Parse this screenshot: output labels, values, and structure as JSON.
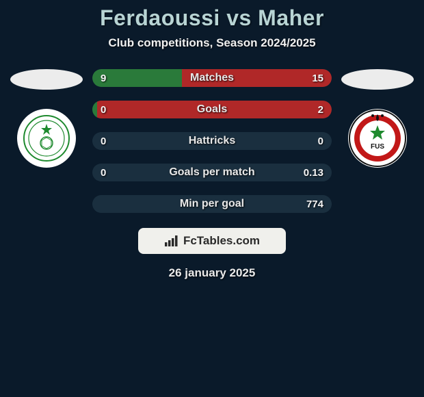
{
  "colors": {
    "background": "#0a1a2a",
    "title_color": "#b8d4d4",
    "subtitle_color": "#f0f0f0",
    "bar_track": "#1a2f3f",
    "left_fill": "#2a7a3a",
    "right_fill": "#b02828",
    "brand_bg": "#f0f0ec",
    "brand_text": "#2a2a2a",
    "left_ellipse": "#ececec",
    "right_ellipse": "#ececec"
  },
  "title": "Ferdaoussi vs Maher",
  "subtitle": "Club competitions, Season 2024/2025",
  "date": "26 january 2025",
  "brand_text": "FcTables.com",
  "left_club": {
    "name": "Raja Club Athletic",
    "badge_bg": "#ffffff",
    "badge_accent": "#1e8a2e"
  },
  "right_club": {
    "name": "FUS Rabat",
    "badge_bg": "#ffffff",
    "badge_accent": "#c21818"
  },
  "stats": [
    {
      "label": "Matches",
      "left_val": "9",
      "right_val": "15",
      "left_pct": 37.5,
      "right_pct": 62.5
    },
    {
      "label": "Goals",
      "left_val": "0",
      "right_val": "2",
      "left_pct": 2,
      "right_pct": 98
    },
    {
      "label": "Hattricks",
      "left_val": "0",
      "right_val": "0",
      "left_pct": 0,
      "right_pct": 0
    },
    {
      "label": "Goals per match",
      "left_val": "0",
      "right_val": "0.13",
      "left_pct": 0,
      "right_pct": 0
    },
    {
      "label": "Min per goal",
      "left_val": "",
      "right_val": "774",
      "left_pct": 0,
      "right_pct": 0
    }
  ]
}
